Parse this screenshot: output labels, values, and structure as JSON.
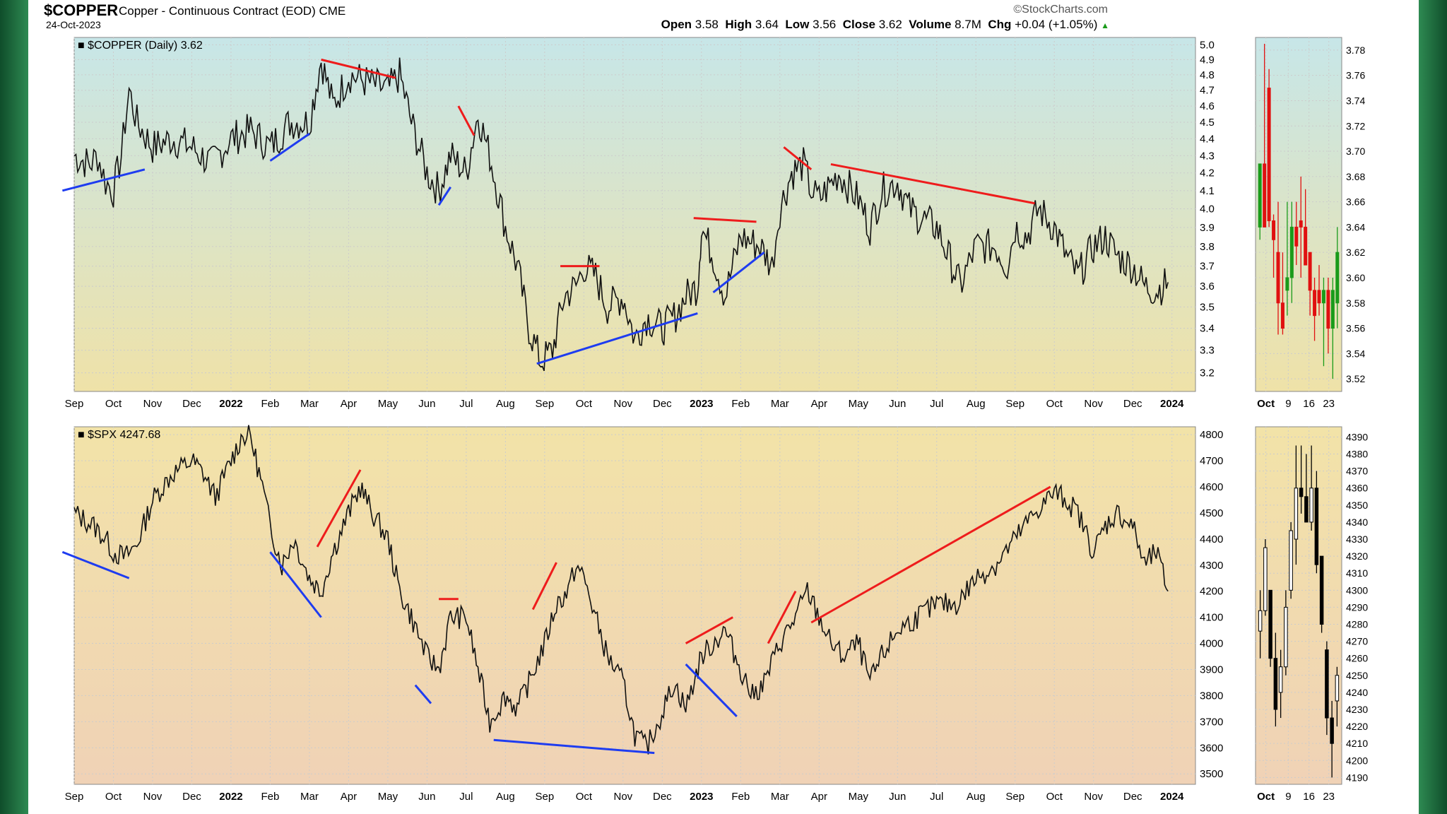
{
  "header": {
    "ticker": "$COPPER",
    "name": "Copper - Continuous Contract (EOD)",
    "exchange": "CME",
    "date": "24-Oct-2023",
    "brand": "©StockCharts.com",
    "open_label": "Open",
    "open": "3.58",
    "high_label": "High",
    "high": "3.64",
    "low_label": "Low",
    "low": "3.56",
    "close_label": "Close",
    "close": "3.62",
    "volume_label": "Volume",
    "volume": "8.7M",
    "chg_label": "Chg",
    "chg": "+0.04 (+1.05%)"
  },
  "colors": {
    "up": "#1a9b1a",
    "down": "#e01010",
    "trend_red": "#ee1c1c",
    "trend_blue": "#1e3cf0",
    "grid": "#cccccc"
  },
  "chart_data": [
    {
      "type": "line",
      "panel": "copper-main",
      "legend": "$COPPER (Daily) 3.62",
      "x_ticks": [
        "Sep",
        "Oct",
        "Nov",
        "Dec",
        "2022",
        "Feb",
        "Mar",
        "Apr",
        "May",
        "Jun",
        "Jul",
        "Aug",
        "Sep",
        "Oct",
        "Nov",
        "Dec",
        "2023",
        "Feb",
        "Mar",
        "Apr",
        "May",
        "Jun",
        "Jul",
        "Aug",
        "Sep",
        "Oct",
        "Nov",
        "Dec",
        "2024"
      ],
      "y_ticks": [
        3.2,
        3.3,
        3.4,
        3.5,
        3.6,
        3.7,
        3.8,
        3.9,
        4.0,
        4.1,
        4.2,
        4.3,
        4.4,
        4.5,
        4.6,
        4.7,
        4.8,
        4.9,
        5.0
      ],
      "ylim": [
        3.12,
        5.05
      ],
      "x_range": [
        0,
        28.6
      ],
      "scale": "log",
      "anchors": [
        [
          0,
          4.3
        ],
        [
          0.4,
          4.25
        ],
        [
          0.6,
          4.3
        ],
        [
          0.8,
          4.15
        ],
        [
          1.0,
          4.1
        ],
        [
          1.2,
          4.3
        ],
        [
          1.4,
          4.7
        ],
        [
          1.6,
          4.5
        ],
        [
          2.0,
          4.35
        ],
        [
          2.5,
          4.4
        ],
        [
          3.0,
          4.35
        ],
        [
          3.5,
          4.25
        ],
        [
          4.0,
          4.4
        ],
        [
          4.5,
          4.45
        ],
        [
          5.0,
          4.35
        ],
        [
          5.5,
          4.5
        ],
        [
          6.0,
          4.5
        ],
        [
          6.3,
          4.9
        ],
        [
          6.6,
          4.6
        ],
        [
          7.0,
          4.8
        ],
        [
          7.5,
          4.75
        ],
        [
          8.0,
          4.7
        ],
        [
          8.3,
          4.8
        ],
        [
          8.6,
          4.5
        ],
        [
          9.0,
          4.2
        ],
        [
          9.3,
          4.1
        ],
        [
          9.6,
          4.3
        ],
        [
          10.0,
          4.2
        ],
        [
          10.3,
          4.55
        ],
        [
          10.6,
          4.3
        ],
        [
          11.0,
          3.9
        ],
        [
          11.3,
          3.7
        ],
        [
          11.6,
          3.4
        ],
        [
          11.9,
          3.25
        ],
        [
          12.2,
          3.3
        ],
        [
          12.5,
          3.55
        ],
        [
          12.8,
          3.6
        ],
        [
          13.0,
          3.7
        ],
        [
          13.3,
          3.65
        ],
        [
          13.6,
          3.5
        ],
        [
          14.0,
          3.55
        ],
        [
          14.3,
          3.35
        ],
        [
          14.6,
          3.45
        ],
        [
          15.0,
          3.4
        ],
        [
          15.3,
          3.45
        ],
        [
          15.6,
          3.55
        ],
        [
          15.9,
          3.6
        ],
        [
          16.0,
          3.9
        ],
        [
          16.3,
          3.75
        ],
        [
          16.6,
          3.55
        ],
        [
          17.0,
          3.85
        ],
        [
          17.5,
          3.8
        ],
        [
          17.8,
          3.7
        ],
        [
          18.0,
          4.0
        ],
        [
          18.3,
          4.2
        ],
        [
          18.6,
          4.25
        ],
        [
          18.8,
          4.1
        ],
        [
          19.0,
          4.05
        ],
        [
          19.5,
          4.2
        ],
        [
          20.0,
          4.05
        ],
        [
          20.3,
          3.9
        ],
        [
          20.6,
          4.1
        ],
        [
          21.0,
          4.15
        ],
        [
          21.3,
          4.0
        ],
        [
          21.6,
          3.95
        ],
        [
          22.0,
          3.9
        ],
        [
          22.3,
          3.75
        ],
        [
          22.6,
          3.6
        ],
        [
          23.0,
          3.8
        ],
        [
          23.5,
          3.8
        ],
        [
          23.8,
          3.7
        ],
        [
          24.0,
          3.9
        ],
        [
          24.3,
          3.85
        ],
        [
          24.6,
          4.0
        ],
        [
          25.0,
          3.9
        ],
        [
          25.3,
          3.75
        ],
        [
          25.6,
          3.65
        ],
        [
          26.0,
          3.8
        ],
        [
          26.3,
          3.85
        ],
        [
          26.6,
          3.75
        ],
        [
          27.0,
          3.7
        ],
        [
          27.3,
          3.6
        ],
        [
          27.6,
          3.58
        ],
        [
          27.9,
          3.62
        ]
      ],
      "trendlines": [
        {
          "color": "trend_blue",
          "points": [
            [
              -0.3,
              4.1
            ],
            [
              1.8,
              4.22
            ]
          ]
        },
        {
          "color": "trend_blue",
          "points": [
            [
              5.0,
              4.27
            ],
            [
              6.0,
              4.43
            ]
          ]
        },
        {
          "color": "trend_red",
          "points": [
            [
              6.3,
              4.9
            ],
            [
              8.2,
              4.78
            ]
          ]
        },
        {
          "color": "trend_blue",
          "points": [
            [
              9.3,
              4.02
            ],
            [
              9.6,
              4.12
            ]
          ]
        },
        {
          "color": "trend_red",
          "points": [
            [
              9.8,
              4.6
            ],
            [
              10.2,
              4.42
            ]
          ]
        },
        {
          "color": "trend_blue",
          "points": [
            [
              11.8,
              3.24
            ],
            [
              15.9,
              3.47
            ]
          ]
        },
        {
          "color": "trend_red",
          "points": [
            [
              12.4,
              3.7
            ],
            [
              13.4,
              3.7
            ]
          ]
        },
        {
          "color": "trend_red",
          "points": [
            [
              15.8,
              3.95
            ],
            [
              17.4,
              3.93
            ]
          ]
        },
        {
          "color": "trend_blue",
          "points": [
            [
              16.3,
              3.57
            ],
            [
              17.6,
              3.77
            ]
          ]
        },
        {
          "color": "trend_red",
          "points": [
            [
              18.1,
              4.35
            ],
            [
              18.8,
              4.22
            ]
          ]
        },
        {
          "color": "trend_red",
          "points": [
            [
              19.3,
              4.25
            ],
            [
              24.5,
              4.03
            ]
          ]
        }
      ]
    },
    {
      "type": "line",
      "panel": "spx-main",
      "legend": "$SPX 4247.68",
      "x_ticks": [
        "Sep",
        "Oct",
        "Nov",
        "Dec",
        "2022",
        "Feb",
        "Mar",
        "Apr",
        "May",
        "Jun",
        "Jul",
        "Aug",
        "Sep",
        "Oct",
        "Nov",
        "Dec",
        "2023",
        "Feb",
        "Mar",
        "Apr",
        "May",
        "Jun",
        "Jul",
        "Aug",
        "Sep",
        "Oct",
        "Nov",
        "Dec",
        "2024"
      ],
      "y_ticks": [
        3500,
        3600,
        3700,
        3800,
        3900,
        4000,
        4100,
        4200,
        4300,
        4400,
        4500,
        4600,
        4700,
        4800
      ],
      "ylim": [
        3460,
        4830
      ],
      "x_range": [
        0,
        28.6
      ],
      "anchors": [
        [
          0,
          4500
        ],
        [
          0.5,
          4450
        ],
        [
          0.8,
          4400
        ],
        [
          1.0,
          4350
        ],
        [
          1.3,
          4330
        ],
        [
          1.6,
          4380
        ],
        [
          2.0,
          4550
        ],
        [
          2.5,
          4650
        ],
        [
          3.0,
          4700
        ],
        [
          3.3,
          4650
        ],
        [
          3.6,
          4560
        ],
        [
          4.0,
          4700
        ],
        [
          4.3,
          4800
        ],
        [
          4.5,
          4790
        ],
        [
          4.8,
          4600
        ],
        [
          5.0,
          4450
        ],
        [
          5.3,
          4300
        ],
        [
          5.6,
          4400
        ],
        [
          6.0,
          4250
        ],
        [
          6.3,
          4200
        ],
        [
          6.6,
          4350
        ],
        [
          7.0,
          4500
        ],
        [
          7.3,
          4600
        ],
        [
          7.6,
          4500
        ],
        [
          8.0,
          4400
        ],
        [
          8.3,
          4200
        ],
        [
          8.6,
          4100
        ],
        [
          9.0,
          3950
        ],
        [
          9.3,
          3900
        ],
        [
          9.6,
          4100
        ],
        [
          10.0,
          4100
        ],
        [
          10.3,
          3900
        ],
        [
          10.6,
          3700
        ],
        [
          11.0,
          3800
        ],
        [
          11.3,
          3750
        ],
        [
          11.6,
          3850
        ],
        [
          12.0,
          4000
        ],
        [
          12.3,
          4150
        ],
        [
          12.6,
          4200
        ],
        [
          12.8,
          4300
        ],
        [
          13.0,
          4250
        ],
        [
          13.3,
          4100
        ],
        [
          13.6,
          3950
        ],
        [
          14.0,
          3850
        ],
        [
          14.3,
          3650
        ],
        [
          14.6,
          3600
        ],
        [
          14.9,
          3700
        ],
        [
          15.3,
          3850
        ],
        [
          15.6,
          3750
        ],
        [
          16.0,
          3950
        ],
        [
          16.3,
          4000
        ],
        [
          16.6,
          4050
        ],
        [
          17.0,
          3900
        ],
        [
          17.3,
          3800
        ],
        [
          17.6,
          3850
        ],
        [
          18.0,
          4000
        ],
        [
          18.4,
          4100
        ],
        [
          18.7,
          4200
        ],
        [
          19.0,
          4100
        ],
        [
          19.3,
          4000
        ],
        [
          19.6,
          3950
        ],
        [
          20.0,
          4000
        ],
        [
          20.3,
          3850
        ],
        [
          20.6,
          3950
        ],
        [
          21.0,
          4050
        ],
        [
          21.5,
          4100
        ],
        [
          22.0,
          4150
        ],
        [
          22.5,
          4150
        ],
        [
          23.0,
          4250
        ],
        [
          23.5,
          4300
        ],
        [
          24.0,
          4400
        ],
        [
          24.5,
          4500
        ],
        [
          25.0,
          4580
        ],
        [
          25.3,
          4550
        ],
        [
          25.6,
          4500
        ],
        [
          26.0,
          4350
        ],
        [
          26.3,
          4450
        ],
        [
          26.6,
          4500
        ],
        [
          27.0,
          4450
        ],
        [
          27.3,
          4300
        ],
        [
          27.6,
          4350
        ],
        [
          27.9,
          4200
        ]
      ],
      "trendlines": [
        {
          "color": "trend_blue",
          "points": [
            [
              -0.3,
              4350
            ],
            [
              1.4,
              4250
            ]
          ]
        },
        {
          "color": "trend_blue",
          "points": [
            [
              5.0,
              4350
            ],
            [
              6.3,
              4100
            ]
          ]
        },
        {
          "color": "trend_red",
          "points": [
            [
              6.2,
              4370
            ],
            [
              7.3,
              4665
            ]
          ]
        },
        {
          "color": "trend_blue",
          "points": [
            [
              8.7,
              3840
            ],
            [
              9.1,
              3770
            ]
          ]
        },
        {
          "color": "trend_red",
          "points": [
            [
              9.3,
              4170
            ],
            [
              9.8,
              4170
            ]
          ]
        },
        {
          "color": "trend_blue",
          "points": [
            [
              10.7,
              3630
            ],
            [
              14.8,
              3580
            ]
          ]
        },
        {
          "color": "trend_red",
          "points": [
            [
              11.7,
              4130
            ],
            [
              12.3,
              4310
            ]
          ]
        },
        {
          "color": "trend_red",
          "points": [
            [
              15.6,
              4000
            ],
            [
              16.8,
              4100
            ]
          ]
        },
        {
          "color": "trend_blue",
          "points": [
            [
              15.6,
              3920
            ],
            [
              16.9,
              3720
            ]
          ]
        },
        {
          "color": "trend_red",
          "points": [
            [
              17.7,
              4000
            ],
            [
              18.4,
              4200
            ]
          ]
        },
        {
          "color": "trend_red",
          "points": [
            [
              18.8,
              4080
            ],
            [
              24.9,
              4600
            ]
          ]
        }
      ]
    },
    {
      "type": "candlestick",
      "panel": "copper-zoom",
      "x_ticks": [
        "Oct",
        "9",
        "16",
        "23"
      ],
      "y_ticks": [
        3.52,
        3.54,
        3.56,
        3.58,
        3.6,
        3.62,
        3.64,
        3.66,
        3.68,
        3.7,
        3.72,
        3.74,
        3.76,
        3.78
      ],
      "ylim": [
        3.51,
        3.79
      ],
      "candles": [
        [
          3.64,
          3.69,
          3.63,
          3.69
        ],
        [
          3.69,
          3.785,
          3.64,
          3.64
        ],
        [
          3.75,
          3.765,
          3.64,
          3.645
        ],
        [
          3.645,
          3.65,
          3.6,
          3.63
        ],
        [
          3.62,
          3.66,
          3.555,
          3.58
        ],
        [
          3.58,
          3.62,
          3.555,
          3.56
        ],
        [
          3.59,
          3.66,
          3.57,
          3.6
        ],
        [
          3.6,
          3.66,
          3.58,
          3.64
        ],
        [
          3.64,
          3.66,
          3.61,
          3.625
        ],
        [
          3.645,
          3.68,
          3.6,
          3.64
        ],
        [
          3.64,
          3.67,
          3.61,
          3.61
        ],
        [
          3.62,
          3.62,
          3.57,
          3.59
        ],
        [
          3.59,
          3.6,
          3.55,
          3.57
        ],
        [
          3.59,
          3.61,
          3.57,
          3.58
        ],
        [
          3.58,
          3.6,
          3.53,
          3.59
        ],
        [
          3.59,
          3.6,
          3.54,
          3.56
        ],
        [
          3.56,
          3.6,
          3.52,
          3.59
        ],
        [
          3.58,
          3.64,
          3.56,
          3.62
        ]
      ]
    },
    {
      "type": "candlestick",
      "panel": "spx-zoom",
      "x_ticks": [
        "Oct",
        "9",
        "16",
        "23"
      ],
      "y_ticks": [
        4190,
        4200,
        4210,
        4220,
        4230,
        4240,
        4250,
        4260,
        4270,
        4280,
        4290,
        4300,
        4310,
        4320,
        4330,
        4340,
        4350,
        4360,
        4370,
        4380,
        4390
      ],
      "ylim": [
        4186,
        4396
      ],
      "candles": [
        [
          4276,
          4300,
          4260,
          4288
        ],
        [
          4288,
          4330,
          4285,
          4325
        ],
        [
          4300,
          4300,
          4255,
          4260
        ],
        [
          4260,
          4275,
          4220,
          4230
        ],
        [
          4240,
          4265,
          4225,
          4255
        ],
        [
          4255,
          4300,
          4250,
          4290
        ],
        [
          4300,
          4340,
          4295,
          4335
        ],
        [
          4330,
          4385,
          4315,
          4360
        ],
        [
          4360,
          4385,
          4345,
          4355
        ],
        [
          4355,
          4380,
          4340,
          4340
        ],
        [
          4340,
          4385,
          4335,
          4360
        ],
        [
          4360,
          4370,
          4310,
          4315
        ],
        [
          4320,
          4320,
          4275,
          4280
        ],
        [
          4265,
          4270,
          4215,
          4225
        ],
        [
          4225,
          4235,
          4190,
          4210
        ],
        [
          4235,
          4255,
          4220,
          4250
        ]
      ]
    }
  ]
}
